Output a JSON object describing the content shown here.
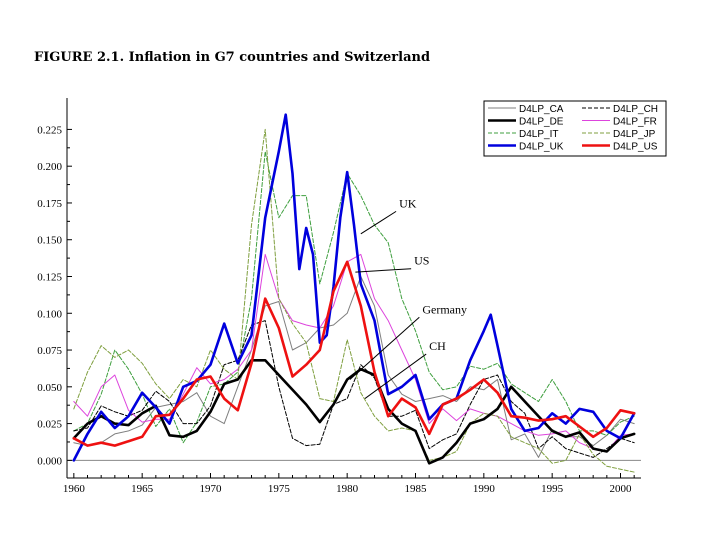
{
  "title": "FIGURE 2.1. Inflation  in G7 countries and Switzerland",
  "chart_data": {
    "type": "line",
    "title": "FIGURE 2.1. Inflation  in G7 countries and Switzerland",
    "xlabel": "",
    "ylabel": "",
    "xlim": [
      1959.5,
      2001.5
    ],
    "ylim": [
      -0.012,
      0.245
    ],
    "grid": false,
    "legend_position": "top-right",
    "x_ticks": [
      "1960",
      "1965",
      "1970",
      "1975",
      "1980",
      "1985",
      "1990",
      "1995",
      "2000"
    ],
    "y_ticks": [
      "0.000",
      "0.025",
      "0.050",
      "0.075",
      "0.100",
      "0.125",
      "0.150",
      "0.175",
      "0.200",
      "0.225"
    ],
    "annotations": [
      {
        "text": "UK",
        "x": 1983.8,
        "y": 0.172,
        "arrow_x": 1981.0,
        "arrow_y": 0.154
      },
      {
        "text": "US",
        "x": 1984.9,
        "y": 0.133,
        "arrow_x": 1980.6,
        "arrow_y": 0.128
      },
      {
        "text": "Germany",
        "x": 1985.5,
        "y": 0.1,
        "arrow_x": 1980.2,
        "arrow_y": 0.055
      },
      {
        "text": "CH",
        "x": 1986.0,
        "y": 0.075,
        "arrow_x": 1981.3,
        "arrow_y": 0.042
      }
    ],
    "series": [
      {
        "name": "D4LP_CA",
        "color": "#7f7f7f",
        "dash": "solid",
        "width": 1,
        "x": [
          1960,
          1961,
          1962,
          1963,
          1964,
          1965,
          1966,
          1967,
          1968,
          1969,
          1970,
          1971,
          1972,
          1973,
          1974,
          1975,
          1976,
          1977,
          1978,
          1979,
          1980,
          1981,
          1982,
          1983,
          1984,
          1985,
          1986,
          1987,
          1988,
          1989,
          1990,
          1991,
          1992,
          1993,
          1994,
          1995,
          1996,
          1997,
          1998,
          1999,
          2000,
          2001
        ],
        "y": [
          0.012,
          0.01,
          0.012,
          0.018,
          0.02,
          0.024,
          0.036,
          0.038,
          0.04,
          0.046,
          0.03,
          0.025,
          0.05,
          0.075,
          0.105,
          0.108,
          0.075,
          0.08,
          0.09,
          0.092,
          0.1,
          0.125,
          0.105,
          0.058,
          0.045,
          0.04,
          0.042,
          0.044,
          0.04,
          0.05,
          0.048,
          0.055,
          0.014,
          0.018,
          0.002,
          0.021,
          0.016,
          0.016,
          0.01,
          0.017,
          0.028,
          0.025
        ]
      },
      {
        "name": "D4LP_DE",
        "color": "#000000",
        "dash": "solid",
        "width": 2.6,
        "x": [
          1960,
          1961,
          1962,
          1963,
          1964,
          1965,
          1966,
          1967,
          1968,
          1969,
          1970,
          1971,
          1972,
          1973,
          1974,
          1975,
          1976,
          1977,
          1978,
          1979,
          1980,
          1981,
          1982,
          1983,
          1984,
          1985,
          1986,
          1987,
          1988,
          1989,
          1990,
          1991,
          1992,
          1993,
          1994,
          1995,
          1996,
          1997,
          1998,
          1999,
          2000,
          2001
        ],
        "y": [
          0.015,
          0.025,
          0.03,
          0.025,
          0.024,
          0.032,
          0.037,
          0.017,
          0.016,
          0.02,
          0.033,
          0.052,
          0.055,
          0.068,
          0.068,
          0.058,
          0.048,
          0.038,
          0.026,
          0.038,
          0.055,
          0.062,
          0.058,
          0.035,
          0.025,
          0.02,
          -0.002,
          0.002,
          0.012,
          0.025,
          0.028,
          0.035,
          0.05,
          0.04,
          0.03,
          0.02,
          0.016,
          0.019,
          0.008,
          0.006,
          0.015,
          0.018
        ]
      },
      {
        "name": "D4LP_IT",
        "color": "#3f9f3f",
        "dash": "dashed",
        "width": 1,
        "x": [
          1960,
          1961,
          1962,
          1963,
          1964,
          1965,
          1966,
          1967,
          1968,
          1969,
          1970,
          1971,
          1972,
          1973,
          1974,
          1975,
          1976,
          1977,
          1978,
          1979,
          1980,
          1981,
          1982,
          1983,
          1984,
          1985,
          1986,
          1987,
          1988,
          1989,
          1990,
          1991,
          1992,
          1993,
          1994,
          1995,
          1996,
          1997,
          1998,
          1999,
          2000,
          2001
        ],
        "y": [
          0.02,
          0.025,
          0.045,
          0.075,
          0.062,
          0.045,
          0.023,
          0.035,
          0.012,
          0.026,
          0.05,
          0.052,
          0.06,
          0.11,
          0.21,
          0.165,
          0.18,
          0.18,
          0.12,
          0.155,
          0.195,
          0.18,
          0.16,
          0.148,
          0.11,
          0.088,
          0.06,
          0.048,
          0.05,
          0.064,
          0.062,
          0.066,
          0.052,
          0.046,
          0.04,
          0.055,
          0.04,
          0.02,
          0.02,
          0.017,
          0.026,
          0.03
        ]
      },
      {
        "name": "D4LP_UK",
        "color": "#0000dd",
        "dash": "solid",
        "width": 2.6,
        "x": [
          1960,
          1961,
          1962,
          1963,
          1964,
          1965,
          1966,
          1967,
          1968,
          1969,
          1970,
          1971,
          1972,
          1973,
          1974,
          1975,
          1975.5,
          1976,
          1976.5,
          1977,
          1977.5,
          1978,
          1978.5,
          1979,
          1979.5,
          1980,
          1980.5,
          1981,
          1982,
          1983,
          1984,
          1985,
          1986,
          1987,
          1988,
          1989,
          1990,
          1990.5,
          1991,
          1992,
          1993,
          1994,
          1995,
          1996,
          1997,
          1998,
          1999,
          2000,
          2001
        ],
        "y": [
          0.0,
          0.018,
          0.033,
          0.022,
          0.03,
          0.046,
          0.036,
          0.025,
          0.05,
          0.054,
          0.065,
          0.093,
          0.066,
          0.085,
          0.165,
          0.21,
          0.235,
          0.195,
          0.13,
          0.158,
          0.14,
          0.08,
          0.085,
          0.118,
          0.165,
          0.196,
          0.16,
          0.12,
          0.095,
          0.045,
          0.05,
          0.058,
          0.028,
          0.038,
          0.042,
          0.068,
          0.088,
          0.099,
          0.078,
          0.035,
          0.02,
          0.022,
          0.032,
          0.025,
          0.035,
          0.033,
          0.02,
          0.015,
          0.032
        ]
      },
      {
        "name": "D4LP_CH",
        "color": "#000000",
        "dash": "dashed",
        "width": 1,
        "x": [
          1960,
          1961,
          1962,
          1963,
          1964,
          1965,
          1966,
          1967,
          1968,
          1969,
          1970,
          1971,
          1972,
          1973,
          1974,
          1975,
          1976,
          1977,
          1978,
          1979,
          1980,
          1981,
          1982,
          1983,
          1984,
          1985,
          1986,
          1987,
          1988,
          1989,
          1990,
          1991,
          1992,
          1993,
          1994,
          1995,
          1996,
          1997,
          1998,
          1999,
          2000,
          2001
        ],
        "y": [
          0.02,
          0.022,
          0.037,
          0.033,
          0.03,
          0.034,
          0.047,
          0.04,
          0.025,
          0.025,
          0.037,
          0.065,
          0.068,
          0.092,
          0.095,
          0.05,
          0.015,
          0.01,
          0.011,
          0.038,
          0.042,
          0.065,
          0.056,
          0.03,
          0.03,
          0.034,
          0.008,
          0.014,
          0.018,
          0.038,
          0.055,
          0.058,
          0.04,
          0.032,
          0.008,
          0.016,
          0.008,
          0.005,
          0.002,
          0.008,
          0.015,
          0.012
        ]
      },
      {
        "name": "D4LP_FR",
        "color": "#dd44dd",
        "dash": "solid",
        "width": 1,
        "x": [
          1960,
          1961,
          1962,
          1963,
          1964,
          1965,
          1966,
          1967,
          1968,
          1969,
          1970,
          1971,
          1972,
          1973,
          1974,
          1975,
          1976,
          1977,
          1978,
          1979,
          1980,
          1981,
          1982,
          1983,
          1984,
          1985,
          1986,
          1987,
          1988,
          1989,
          1990,
          1991,
          1992,
          1993,
          1994,
          1995,
          1996,
          1997,
          1998,
          1999,
          2000,
          2001
        ],
        "y": [
          0.04,
          0.03,
          0.05,
          0.058,
          0.034,
          0.026,
          0.028,
          0.028,
          0.045,
          0.063,
          0.052,
          0.055,
          0.062,
          0.075,
          0.14,
          0.11,
          0.095,
          0.092,
          0.09,
          0.105,
          0.135,
          0.14,
          0.11,
          0.095,
          0.075,
          0.055,
          0.025,
          0.035,
          0.027,
          0.035,
          0.032,
          0.03,
          0.025,
          0.02,
          0.017,
          0.018,
          0.02,
          0.012,
          0.008,
          0.006,
          0.017,
          0.018
        ]
      },
      {
        "name": "D4LP_JP",
        "color": "#7f9f3f",
        "dash": "dashed",
        "width": 1,
        "x": [
          1960,
          1961,
          1962,
          1963,
          1964,
          1965,
          1966,
          1967,
          1968,
          1969,
          1970,
          1971,
          1972,
          1973,
          1974,
          1975,
          1976,
          1977,
          1978,
          1979,
          1980,
          1981,
          1982,
          1983,
          1984,
          1985,
          1986,
          1987,
          1988,
          1989,
          1990,
          1991,
          1992,
          1993,
          1994,
          1995,
          1996,
          1997,
          1998,
          1999,
          2000,
          2001
        ],
        "y": [
          0.035,
          0.06,
          0.078,
          0.07,
          0.075,
          0.066,
          0.052,
          0.042,
          0.055,
          0.05,
          0.075,
          0.062,
          0.055,
          0.16,
          0.225,
          0.11,
          0.093,
          0.08,
          0.042,
          0.04,
          0.082,
          0.046,
          0.03,
          0.02,
          0.022,
          0.02,
          0.0,
          0.002,
          0.006,
          0.025,
          0.032,
          0.03,
          0.016,
          0.012,
          0.008,
          -0.002,
          0.0,
          0.018,
          0.004,
          -0.004,
          -0.006,
          -0.008
        ]
      },
      {
        "name": "D4LP_US",
        "color": "#ee1111",
        "dash": "solid",
        "width": 2.6,
        "x": [
          1960,
          1961,
          1962,
          1963,
          1964,
          1965,
          1966,
          1967,
          1968,
          1969,
          1970,
          1971,
          1972,
          1973,
          1974,
          1975,
          1976,
          1977,
          1978,
          1979,
          1980,
          1981,
          1982,
          1983,
          1984,
          1985,
          1986,
          1987,
          1988,
          1989,
          1990,
          1991,
          1992,
          1993,
          1994,
          1995,
          1996,
          1997,
          1998,
          1999,
          2000,
          2001
        ],
        "y": [
          0.015,
          0.01,
          0.012,
          0.01,
          0.013,
          0.016,
          0.03,
          0.031,
          0.042,
          0.055,
          0.057,
          0.042,
          0.034,
          0.066,
          0.11,
          0.09,
          0.057,
          0.065,
          0.075,
          0.115,
          0.135,
          0.105,
          0.06,
          0.03,
          0.042,
          0.036,
          0.018,
          0.038,
          0.042,
          0.048,
          0.055,
          0.046,
          0.03,
          0.029,
          0.027,
          0.028,
          0.03,
          0.023,
          0.016,
          0.022,
          0.034,
          0.032
        ]
      }
    ]
  }
}
